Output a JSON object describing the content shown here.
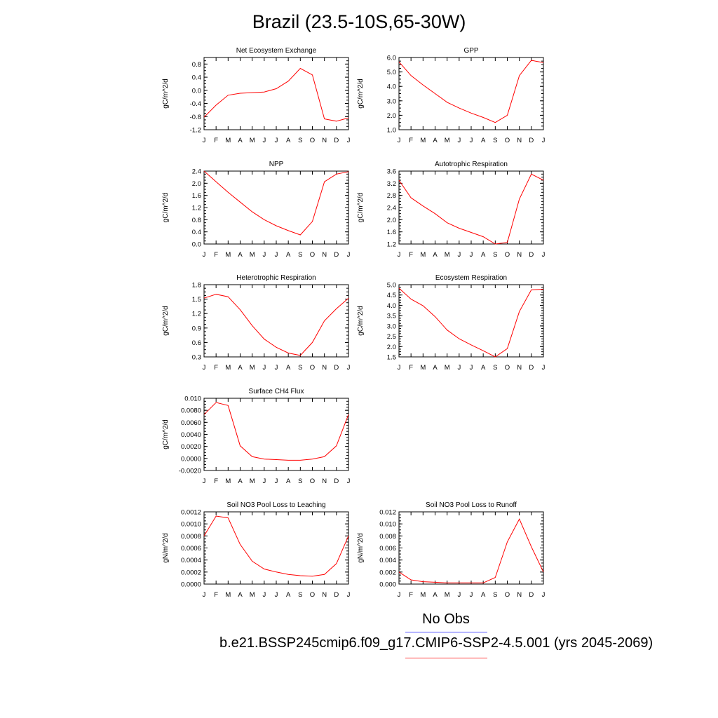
{
  "title": "Brazil (23.5-10S,65-30W)",
  "legend": {
    "obs_label": "No Obs",
    "obs_color": "#5555ff",
    "model_label": "b.e21.BSSP245cmip6.f09_g17.CMIP6-SSP2-4.5.001 (yrs 2045-2069)",
    "model_color": "#ff4444"
  },
  "line_color": "#ff0000",
  "chart_data": [
    {
      "type": "line",
      "title": "Net Ecosystem Exchange",
      "ylabel": "gC/m^2/d",
      "categories": [
        "J",
        "F",
        "M",
        "A",
        "M",
        "J",
        "J",
        "A",
        "S",
        "O",
        "N",
        "D",
        "J"
      ],
      "ylim": [
        -1.2,
        1.0
      ],
      "yticks": [
        "0.8",
        "0.4",
        "0.0",
        "-0.4",
        "-0.8",
        "-1.2"
      ],
      "values": [
        -0.82,
        -0.45,
        -0.15,
        -0.09,
        -0.07,
        -0.05,
        0.05,
        0.28,
        0.67,
        0.47,
        -0.87,
        -0.94,
        -0.84
      ]
    },
    {
      "type": "line",
      "title": "GPP",
      "ylabel": "gC/m^2/d",
      "categories": [
        "J",
        "F",
        "M",
        "A",
        "M",
        "J",
        "J",
        "A",
        "S",
        "O",
        "N",
        "D",
        "J"
      ],
      "ylim": [
        1.0,
        6.0
      ],
      "yticks": [
        "6.0",
        "5.0",
        "4.0",
        "3.0",
        "2.0",
        "1.0"
      ],
      "values": [
        5.7,
        4.75,
        4.1,
        3.5,
        2.9,
        2.5,
        2.15,
        1.85,
        1.5,
        2.0,
        4.75,
        5.8,
        5.65
      ]
    },
    {
      "type": "line",
      "title": "NPP",
      "ylabel": "gC/m^2/d",
      "categories": [
        "J",
        "F",
        "M",
        "A",
        "M",
        "J",
        "J",
        "A",
        "S",
        "O",
        "N",
        "D",
        "J"
      ],
      "ylim": [
        0.0,
        2.4
      ],
      "yticks": [
        "2.4",
        "2.0",
        "1.6",
        "1.2",
        "0.8",
        "0.4",
        "0.0"
      ],
      "values": [
        2.4,
        2.05,
        1.7,
        1.38,
        1.06,
        0.8,
        0.6,
        0.44,
        0.3,
        0.74,
        2.05,
        2.3,
        2.38
      ]
    },
    {
      "type": "line",
      "title": "Autotrophic Respiration",
      "ylabel": "gC/m^2/d",
      "categories": [
        "J",
        "F",
        "M",
        "A",
        "M",
        "J",
        "J",
        "A",
        "S",
        "O",
        "N",
        "D",
        "J"
      ],
      "ylim": [
        1.2,
        3.6
      ],
      "yticks": [
        "3.6",
        "3.2",
        "2.8",
        "2.4",
        "2.0",
        "1.6",
        "1.2"
      ],
      "values": [
        3.3,
        2.72,
        2.45,
        2.2,
        1.9,
        1.72,
        1.58,
        1.44,
        1.2,
        1.25,
        2.68,
        3.5,
        3.3
      ]
    },
    {
      "type": "line",
      "title": "Heterotrophic Respiration",
      "ylabel": "gC/m^2/d",
      "categories": [
        "J",
        "F",
        "M",
        "A",
        "M",
        "J",
        "J",
        "A",
        "S",
        "O",
        "N",
        "D",
        "J"
      ],
      "ylim": [
        0.3,
        1.8
      ],
      "yticks": [
        "1.8",
        "1.5",
        "1.2",
        "0.9",
        "0.6",
        "0.3"
      ],
      "values": [
        1.52,
        1.6,
        1.55,
        1.28,
        0.95,
        0.67,
        0.5,
        0.38,
        0.33,
        0.6,
        1.05,
        1.3,
        1.52
      ]
    },
    {
      "type": "line",
      "title": "Ecosystem Respiration",
      "ylabel": "gC/m^2/d",
      "categories": [
        "J",
        "F",
        "M",
        "A",
        "M",
        "J",
        "J",
        "A",
        "S",
        "O",
        "N",
        "D",
        "J"
      ],
      "ylim": [
        1.5,
        5.0
      ],
      "yticks": [
        "5.0",
        "4.5",
        "4.0",
        "3.5",
        "3.0",
        "2.5",
        "2.0",
        "1.5"
      ],
      "values": [
        4.83,
        4.3,
        3.98,
        3.45,
        2.8,
        2.38,
        2.08,
        1.8,
        1.5,
        1.9,
        3.7,
        4.75,
        4.78
      ]
    },
    {
      "type": "line",
      "title": "Surface CH4 Flux",
      "ylabel": "gC/m^2/d",
      "categories": [
        "J",
        "F",
        "M",
        "A",
        "M",
        "J",
        "J",
        "A",
        "S",
        "O",
        "N",
        "D",
        "J"
      ],
      "ylim": [
        -0.002,
        0.01
      ],
      "yticks": [
        "0.010",
        "0.0080",
        "0.0060",
        "0.0040",
        "0.0020",
        "0.0000",
        "-0.0020"
      ],
      "values": [
        0.0073,
        0.0093,
        0.0088,
        0.0021,
        0.0003,
        -0.0001,
        -0.0002,
        -0.0003,
        -0.0003,
        -0.0001,
        0.0003,
        0.0021,
        0.0073
      ]
    },
    {
      "type": "line",
      "title": "Soil NO3 Pool Loss to Leaching",
      "ylabel": "gN/m^2/d",
      "categories": [
        "J",
        "F",
        "M",
        "A",
        "M",
        "J",
        "J",
        "A",
        "S",
        "O",
        "N",
        "D",
        "J"
      ],
      "ylim": [
        0.0,
        0.0012
      ],
      "yticks": [
        "0.0012",
        "0.0010",
        "0.0008",
        "0.0006",
        "0.0004",
        "0.0002",
        "0.0000"
      ],
      "values": [
        0.0008,
        0.00113,
        0.0011,
        0.00066,
        0.00038,
        0.00025,
        0.0002,
        0.00016,
        0.00014,
        0.00013,
        0.00016,
        0.00034,
        0.0008
      ]
    },
    {
      "type": "line",
      "title": "Soil NO3 Pool Loss to Runoff",
      "ylabel": "gN/m^2/d",
      "categories": [
        "J",
        "F",
        "M",
        "A",
        "M",
        "J",
        "J",
        "A",
        "S",
        "O",
        "N",
        "D",
        "J"
      ],
      "ylim": [
        0.0,
        0.012
      ],
      "yticks": [
        "0.012",
        "0.010",
        "0.008",
        "0.006",
        "0.004",
        "0.002",
        "0.000"
      ],
      "values": [
        0.002,
        0.0007,
        0.0004,
        0.0003,
        0.0002,
        0.0002,
        0.0002,
        0.0002,
        0.0011,
        0.007,
        0.0108,
        0.0062,
        0.002
      ]
    }
  ]
}
